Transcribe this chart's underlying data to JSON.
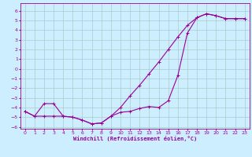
{
  "xlabel": "Windchill (Refroidissement éolien,°C)",
  "bg_color": "#cceeff",
  "grid_color": "#aacccc",
  "line_color": "#990099",
  "xlim": [
    -0.5,
    23.5
  ],
  "ylim": [
    -6.2,
    6.8
  ],
  "xticks": [
    0,
    1,
    2,
    3,
    4,
    5,
    6,
    7,
    8,
    9,
    10,
    11,
    12,
    13,
    14,
    15,
    16,
    17,
    18,
    19,
    20,
    21,
    22,
    23
  ],
  "yticks": [
    -6,
    -5,
    -4,
    -3,
    -2,
    -1,
    0,
    1,
    2,
    3,
    4,
    5,
    6
  ],
  "line1_x": [
    0,
    1,
    2,
    3,
    4,
    5,
    6,
    7,
    8,
    9,
    10,
    11,
    12,
    13,
    14,
    15,
    16,
    17,
    18,
    19,
    20,
    21,
    22,
    23
  ],
  "line1_y": [
    -4.4,
    -4.9,
    -3.6,
    -3.6,
    -4.9,
    -5.0,
    -5.3,
    -5.7,
    -5.6,
    -4.9,
    -4.5,
    -4.4,
    -4.1,
    -3.9,
    -4.0,
    -3.3,
    -0.7,
    3.7,
    5.3,
    5.7,
    5.5,
    5.2,
    5.2,
    5.2
  ],
  "line2_x": [
    0,
    1,
    2,
    3,
    4,
    5,
    6,
    7,
    8,
    9,
    10,
    11,
    12,
    13,
    14,
    15,
    16,
    17,
    18,
    19,
    20,
    21,
    22,
    23
  ],
  "line2_y": [
    -4.4,
    -4.9,
    -4.9,
    -4.9,
    -4.9,
    -5.0,
    -5.3,
    -5.7,
    -5.6,
    -4.9,
    -4.0,
    -2.8,
    -1.7,
    -0.5,
    0.7,
    2.0,
    3.3,
    4.5,
    5.3,
    5.7,
    5.5,
    5.2,
    5.2,
    5.2
  ]
}
